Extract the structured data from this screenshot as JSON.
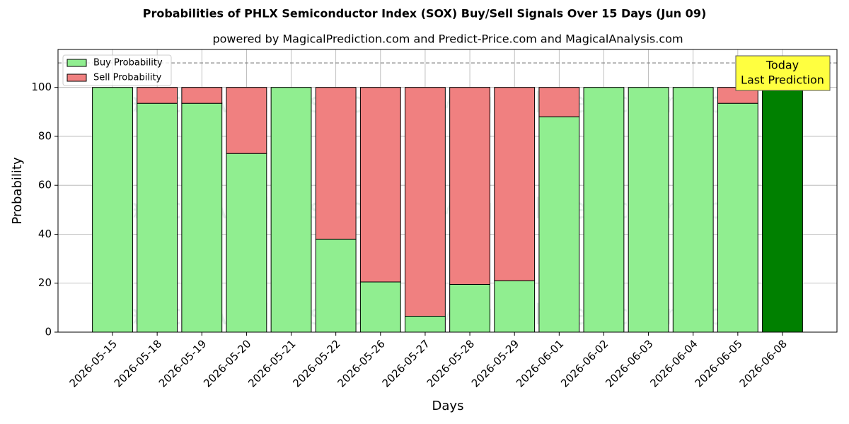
{
  "chart_data": {
    "type": "bar",
    "stacked": true,
    "title": "Probabilities of PHLX Semiconductor Index (SOX) Buy/Sell Signals Over 15 Days (Jun 09)",
    "subtitle": "powered by MagicalPrediction.com and Predict-Price.com and MagicalAnalysis.com",
    "x_label": "Days",
    "y_label": "Probability",
    "categories": [
      "2026-05-15",
      "2026-05-18",
      "2026-05-19",
      "2026-05-20",
      "2026-05-21",
      "2026-05-22",
      "2026-05-26",
      "2026-05-27",
      "2026-05-28",
      "2026-05-29",
      "2026-06-01",
      "2026-06-02",
      "2026-06-03",
      "2026-06-04",
      "2026-06-05",
      "2026-06-08"
    ],
    "series": [
      {
        "name": "Buy Probability",
        "color": "#90ee90",
        "values": [
          100,
          93.5,
          93.5,
          73,
          100,
          38,
          20.5,
          6.5,
          19.5,
          21,
          88,
          100,
          100,
          100,
          93.5,
          100
        ]
      },
      {
        "name": "Sell Probability",
        "color": "#f08080",
        "values": [
          0,
          6.5,
          6.5,
          27,
          0,
          62,
          79.5,
          93.5,
          80.5,
          79,
          12,
          0,
          0,
          0,
          6.5,
          0
        ]
      }
    ],
    "highlight": {
      "category": "2026-06-08",
      "color": "#008000"
    },
    "annotation": [
      "Today",
      "Last Prediction"
    ],
    "hline": 110,
    "ylim": [
      0,
      115.5
    ],
    "yticks": [
      0,
      20,
      40,
      60,
      80,
      100
    ],
    "grid": true,
    "legend": "upper left",
    "watermarks": [
      "MagicalAnalysis.com",
      "MagicalPrediction.com"
    ]
  }
}
